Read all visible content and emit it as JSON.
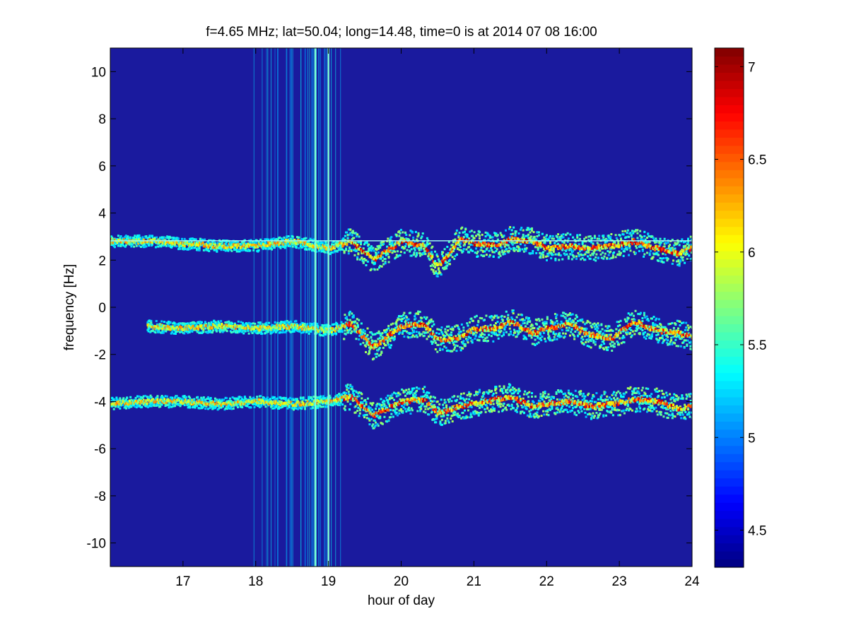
{
  "figure": {
    "title": "f=4.65 MHz;  lat=50.04; long=14.48, time=0 is at 2014 07 08 16:00"
  },
  "chart_data": [
    {
      "type": "heatmap",
      "title": "f=4.65 MHz;  lat=50.04; long=14.48, time=0 is at 2014 07 08 16:00",
      "xlabel": "hour of day",
      "ylabel": "frequency [Hz]",
      "xlim": [
        16.0,
        24.0
      ],
      "ylim": [
        -11.0,
        11.0
      ],
      "xticks": [
        17,
        18,
        19,
        20,
        21,
        22,
        23,
        24
      ],
      "yticks": [
        -10,
        -8,
        -6,
        -4,
        -2,
        0,
        2,
        4,
        6,
        8,
        10
      ],
      "colormap": "jet",
      "background_color": "#1a1a9e",
      "color_range": [
        4.3,
        7.1
      ],
      "colorbar_ticks": [
        4.5,
        5,
        5.5,
        6,
        6.5,
        7
      ],
      "grid": false,
      "traces": [
        {
          "x": [
            16.0,
            16.6,
            17.0,
            17.5,
            18.0,
            18.5,
            19.0,
            19.3,
            19.6,
            20.0,
            20.3,
            20.5,
            20.8,
            21.0,
            21.3,
            21.5,
            21.8,
            22.0,
            22.3,
            22.6,
            22.9,
            23.2,
            23.5,
            23.8,
            24.0
          ],
          "y": [
            2.8,
            2.8,
            2.7,
            2.6,
            2.6,
            2.8,
            2.5,
            2.8,
            2.0,
            2.8,
            2.6,
            1.7,
            2.9,
            2.7,
            2.6,
            2.9,
            2.8,
            2.5,
            2.6,
            2.5,
            2.6,
            2.8,
            2.5,
            2.3,
            2.5
          ]
        },
        {
          "x": [
            16.5,
            17.0,
            17.5,
            18.0,
            18.5,
            19.0,
            19.3,
            19.6,
            20.0,
            20.3,
            20.5,
            20.8,
            21.0,
            21.3,
            21.5,
            21.8,
            22.0,
            22.3,
            22.6,
            22.9,
            23.2,
            23.5,
            23.8,
            24.0
          ],
          "y": [
            -0.8,
            -0.9,
            -0.8,
            -0.9,
            -0.8,
            -1.0,
            -0.7,
            -1.7,
            -0.8,
            -0.7,
            -1.4,
            -1.3,
            -0.9,
            -0.9,
            -0.6,
            -1.1,
            -0.9,
            -0.7,
            -1.2,
            -1.3,
            -0.6,
            -1.0,
            -1.1,
            -1.3
          ]
        },
        {
          "x": [
            16.0,
            16.4,
            17.0,
            17.5,
            18.0,
            18.5,
            19.0,
            19.3,
            19.6,
            20.0,
            20.3,
            20.5,
            20.8,
            21.0,
            21.3,
            21.5,
            21.8,
            22.0,
            22.3,
            22.6,
            22.9,
            23.2,
            23.5,
            23.8,
            24.0
          ],
          "y": [
            -4.1,
            -4.0,
            -4.0,
            -4.1,
            -4.0,
            -4.1,
            -4.0,
            -3.8,
            -4.6,
            -4.0,
            -3.9,
            -4.5,
            -4.2,
            -4.1,
            -3.9,
            -3.8,
            -4.2,
            -4.1,
            -4.0,
            -4.2,
            -4.1,
            -3.9,
            -4.0,
            -4.3,
            -4.2
          ]
        }
      ],
      "vertical_lines": [
        {
          "x": 18.82,
          "color": "#7fffd4"
        },
        {
          "x": 19.0,
          "color": "#7fffd4"
        }
      ],
      "horizontal_lines": [
        {
          "y": 2.82,
          "x_range": [
            16.0,
            24.0
          ],
          "color": "#9ff8f0"
        }
      ]
    },
    {
      "type": "colorbar",
      "ticks": [
        4.5,
        5,
        5.5,
        6,
        6.5,
        7
      ],
      "range": [
        4.3,
        7.1
      ],
      "colormap": "jet"
    }
  ]
}
